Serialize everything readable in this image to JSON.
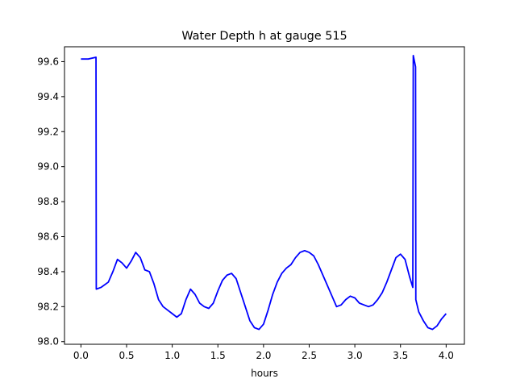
{
  "chart_data": {
    "type": "line",
    "title": "Water Depth h at gauge 515",
    "xlabel": "hours",
    "ylabel": "",
    "xlim": [
      -0.18,
      4.2
    ],
    "ylim": [
      97.985,
      99.685
    ],
    "grid": false,
    "x_ticks": [
      0.0,
      0.5,
      1.0,
      1.5,
      2.0,
      2.5,
      3.0,
      3.5,
      4.0
    ],
    "x_tick_labels": [
      "0.0",
      "0.5",
      "1.0",
      "1.5",
      "2.0",
      "2.5",
      "3.0",
      "3.5",
      "4.0"
    ],
    "y_ticks": [
      98.0,
      98.2,
      98.4,
      98.6,
      98.8,
      99.0,
      99.2,
      99.4,
      99.6
    ],
    "y_tick_labels": [
      "98.0",
      "98.2",
      "98.4",
      "98.6",
      "98.8",
      "99.0",
      "99.2",
      "99.4",
      "99.6"
    ],
    "series": [
      {
        "color": "#0000ff",
        "x": [
          0.0,
          0.08,
          0.165,
          0.168,
          0.22,
          0.3,
          0.35,
          0.4,
          0.45,
          0.5,
          0.55,
          0.6,
          0.65,
          0.7,
          0.75,
          0.8,
          0.85,
          0.9,
          0.95,
          1.0,
          1.05,
          1.1,
          1.15,
          1.2,
          1.25,
          1.3,
          1.35,
          1.4,
          1.45,
          1.5,
          1.55,
          1.6,
          1.65,
          1.7,
          1.75,
          1.8,
          1.85,
          1.9,
          1.95,
          2.0,
          2.05,
          2.1,
          2.15,
          2.2,
          2.25,
          2.3,
          2.35,
          2.4,
          2.45,
          2.5,
          2.55,
          2.6,
          2.65,
          2.7,
          2.75,
          2.8,
          2.85,
          2.9,
          2.95,
          3.0,
          3.05,
          3.1,
          3.15,
          3.2,
          3.25,
          3.3,
          3.35,
          3.4,
          3.45,
          3.5,
          3.55,
          3.6,
          3.635,
          3.64,
          3.665,
          3.668,
          3.7,
          3.75,
          3.8,
          3.85,
          3.9,
          3.95,
          4.0
        ],
        "y": [
          99.615,
          99.615,
          99.625,
          98.3,
          98.31,
          98.34,
          98.4,
          98.47,
          98.45,
          98.42,
          98.46,
          98.51,
          98.48,
          98.41,
          98.4,
          98.33,
          98.24,
          98.2,
          98.18,
          98.16,
          98.14,
          98.16,
          98.24,
          98.3,
          98.27,
          98.22,
          98.2,
          98.19,
          98.22,
          98.29,
          98.35,
          98.38,
          98.39,
          98.36,
          98.28,
          98.2,
          98.12,
          98.08,
          98.07,
          98.1,
          98.18,
          98.27,
          98.34,
          98.39,
          98.42,
          98.44,
          98.48,
          98.51,
          98.52,
          98.51,
          98.49,
          98.44,
          98.38,
          98.32,
          98.26,
          98.2,
          98.21,
          98.24,
          98.26,
          98.25,
          98.22,
          98.21,
          98.2,
          98.21,
          98.24,
          98.28,
          98.34,
          98.41,
          98.48,
          98.5,
          98.47,
          98.37,
          98.31,
          99.635,
          99.57,
          98.24,
          98.17,
          98.12,
          98.08,
          98.07,
          98.09,
          98.13,
          98.16
        ]
      }
    ]
  }
}
